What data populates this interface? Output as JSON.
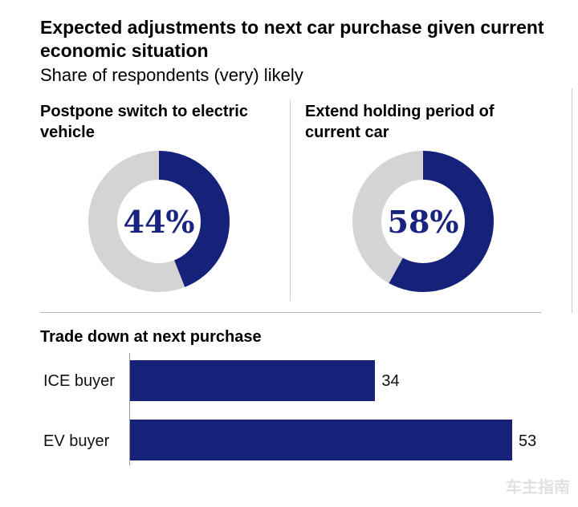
{
  "header": {
    "title": "Expected adjustments to next car purchase given current economic situation",
    "subtitle": "Share of respondents (very) likely"
  },
  "colors": {
    "primary": "#16217a",
    "remainder": "#d4d4d4"
  },
  "watermark": "车主指南",
  "chart_data": [
    {
      "type": "pie",
      "variant": "donut",
      "title": "Postpone switch to electric vehicle",
      "value": 44,
      "center_label": "44%"
    },
    {
      "type": "pie",
      "variant": "donut",
      "title": "Extend holding period of current car",
      "value": 58,
      "center_label": "58%"
    },
    {
      "type": "bar",
      "orientation": "horizontal",
      "title": "Trade down at next purchase",
      "categories": [
        "ICE buyer",
        "EV buyer"
      ],
      "values": [
        34,
        53
      ],
      "xlim": [
        0,
        53
      ]
    }
  ]
}
